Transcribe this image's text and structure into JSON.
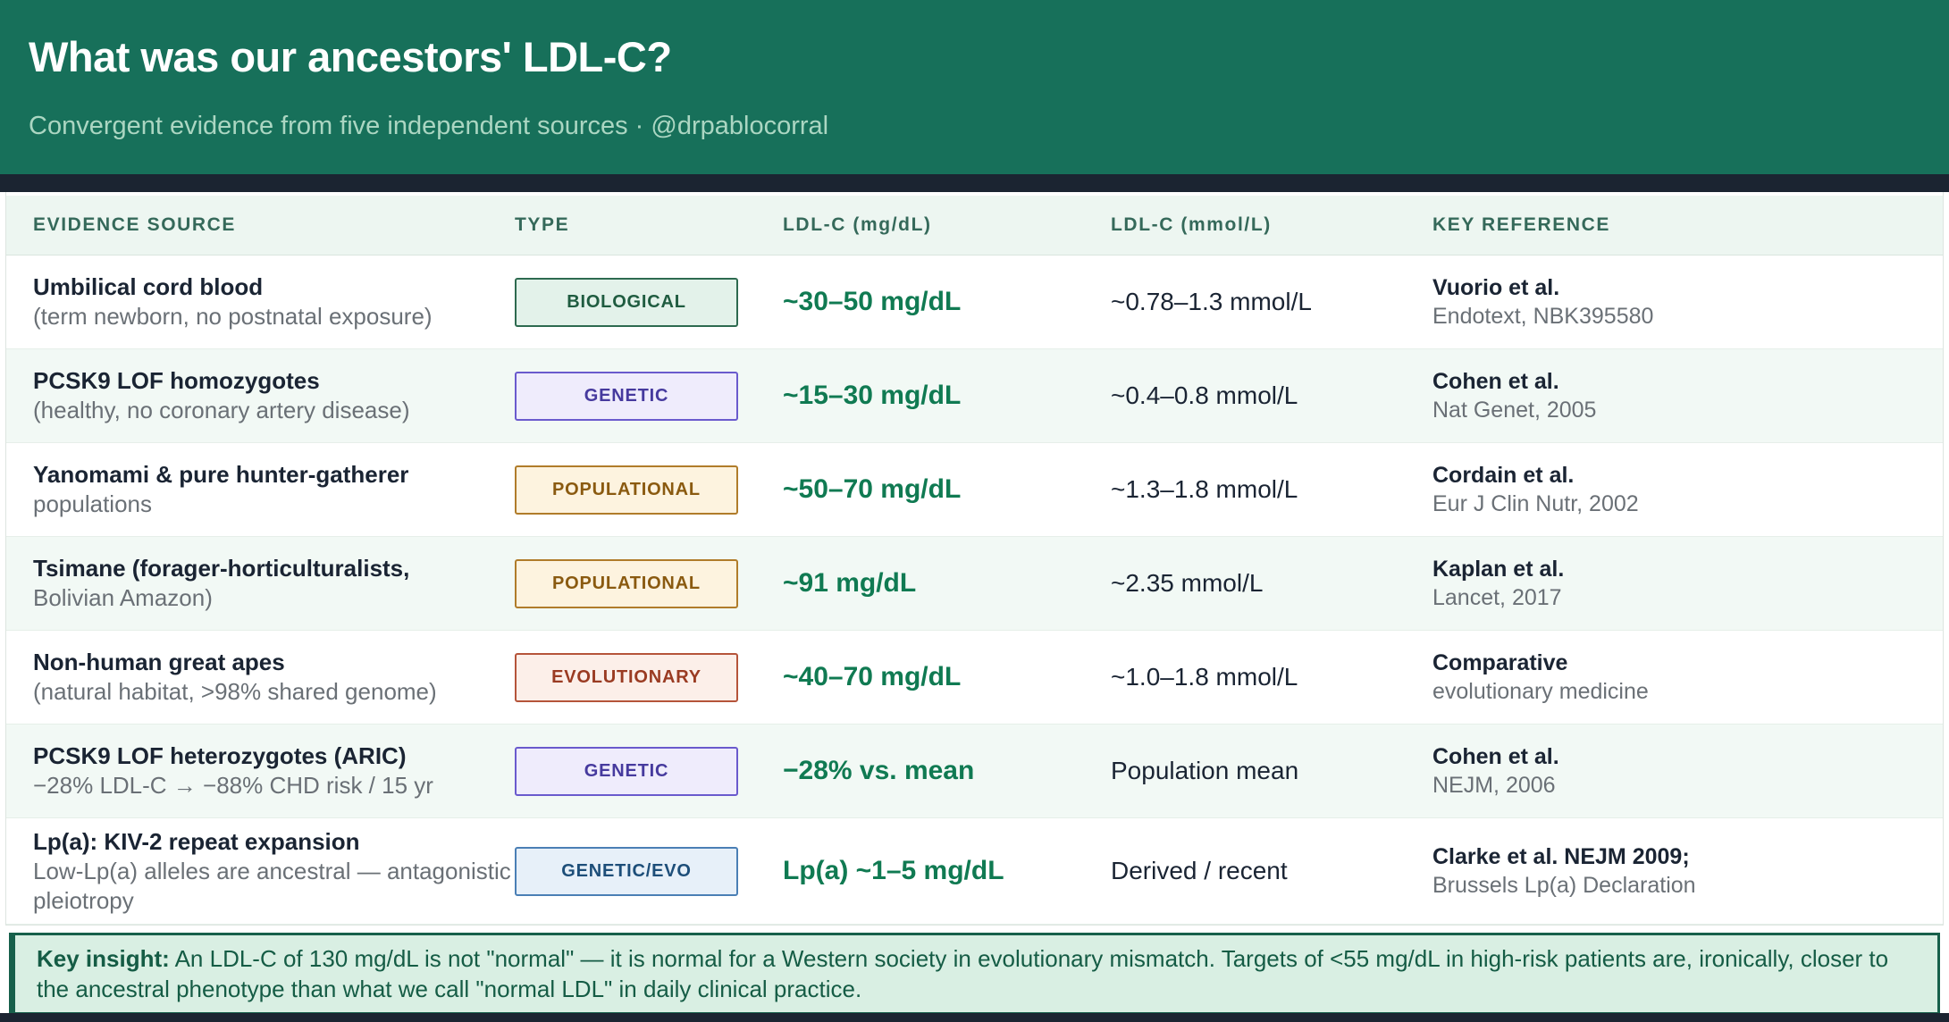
{
  "header": {
    "title": "What was our ancestors' LDL-C?",
    "subtitle": "Convergent evidence from five independent sources  ·  @drpablocorral"
  },
  "table": {
    "columns": [
      "EVIDENCE SOURCE",
      "TYPE",
      "LDL-C (mg/dL)",
      "LDL-C (mmol/L)",
      "KEY REFERENCE"
    ],
    "rows": [
      {
        "source": "Umbilical cord blood",
        "source_note": "(term newborn, no postnatal exposure)",
        "type": "BIOLOGICAL",
        "type_class": "biological",
        "mgdl": "~30–50 mg/dL",
        "mmoll": "~0.78–1.3 mmol/L",
        "ref": "Vuorio et al.",
        "ref_note": "Endotext, NBK395580"
      },
      {
        "source": "PCSK9 LOF homozygotes",
        "source_note": "(healthy, no coronary artery disease)",
        "type": "GENETIC",
        "type_class": "genetic",
        "mgdl": "~15–30 mg/dL",
        "mmoll": "~0.4–0.8 mmol/L",
        "ref": "Cohen et al.",
        "ref_note": "Nat Genet, 2005"
      },
      {
        "source": "Yanomami & pure hunter-gatherer",
        "source_note": "populations",
        "type": "POPULATIONAL",
        "type_class": "populational",
        "mgdl": "~50–70 mg/dL",
        "mmoll": "~1.3–1.8 mmol/L",
        "ref": "Cordain et al.",
        "ref_note": "Eur J Clin Nutr, 2002"
      },
      {
        "source": "Tsimane (forager-horticulturalists,",
        "source_note": "Bolivian Amazon)",
        "type": "POPULATIONAL",
        "type_class": "populational",
        "mgdl": "~91 mg/dL",
        "mmoll": "~2.35 mmol/L",
        "ref": "Kaplan et al.",
        "ref_note": "Lancet, 2017"
      },
      {
        "source": "Non-human great apes",
        "source_note": "(natural habitat, >98% shared genome)",
        "type": "EVOLUTIONARY",
        "type_class": "evolutionary",
        "mgdl": "~40–70 mg/dL",
        "mmoll": "~1.0–1.8 mmol/L",
        "ref": "Comparative",
        "ref_note": "evolutionary medicine"
      },
      {
        "source": "PCSK9 LOF heterozygotes (ARIC)",
        "source_note": "−28% LDL-C → −88% CHD risk / 15 yr",
        "type": "GENETIC",
        "type_class": "genetic",
        "mgdl": "−28% vs. mean",
        "mmoll": "Population mean",
        "ref": "Cohen et al.",
        "ref_note": "NEJM, 2006"
      },
      {
        "source": "Lp(a): KIV-2 repeat expansion",
        "source_note": "Low-Lp(a) alleles are ancestral — antagonistic pleiotropy",
        "type": "GENETIC/EVO",
        "type_class": "genetic-evo",
        "mgdl": "Lp(a) ~1–5 mg/dL",
        "mmoll": "Derived / recent",
        "ref": "Clarke et al. NEJM 2009;",
        "ref_note": "Brussels Lp(a) Declaration"
      }
    ]
  },
  "key_insight": {
    "label": "Key insight:",
    "text": " An LDL-C of 130 mg/dL is not \"normal\" — it is normal for a Western society in evolutionary mismatch. Targets of <55 mg/dL in high-risk patients are, ironically, closer to the ancestral phenotype than what we call \"normal LDL\" in daily clinical practice."
  },
  "colors": {
    "banner_green": "#17705a",
    "navy": "#1b2431",
    "value_green": "#107a52",
    "insight_bg": "#d9efe3",
    "insight_border": "#17604b"
  }
}
